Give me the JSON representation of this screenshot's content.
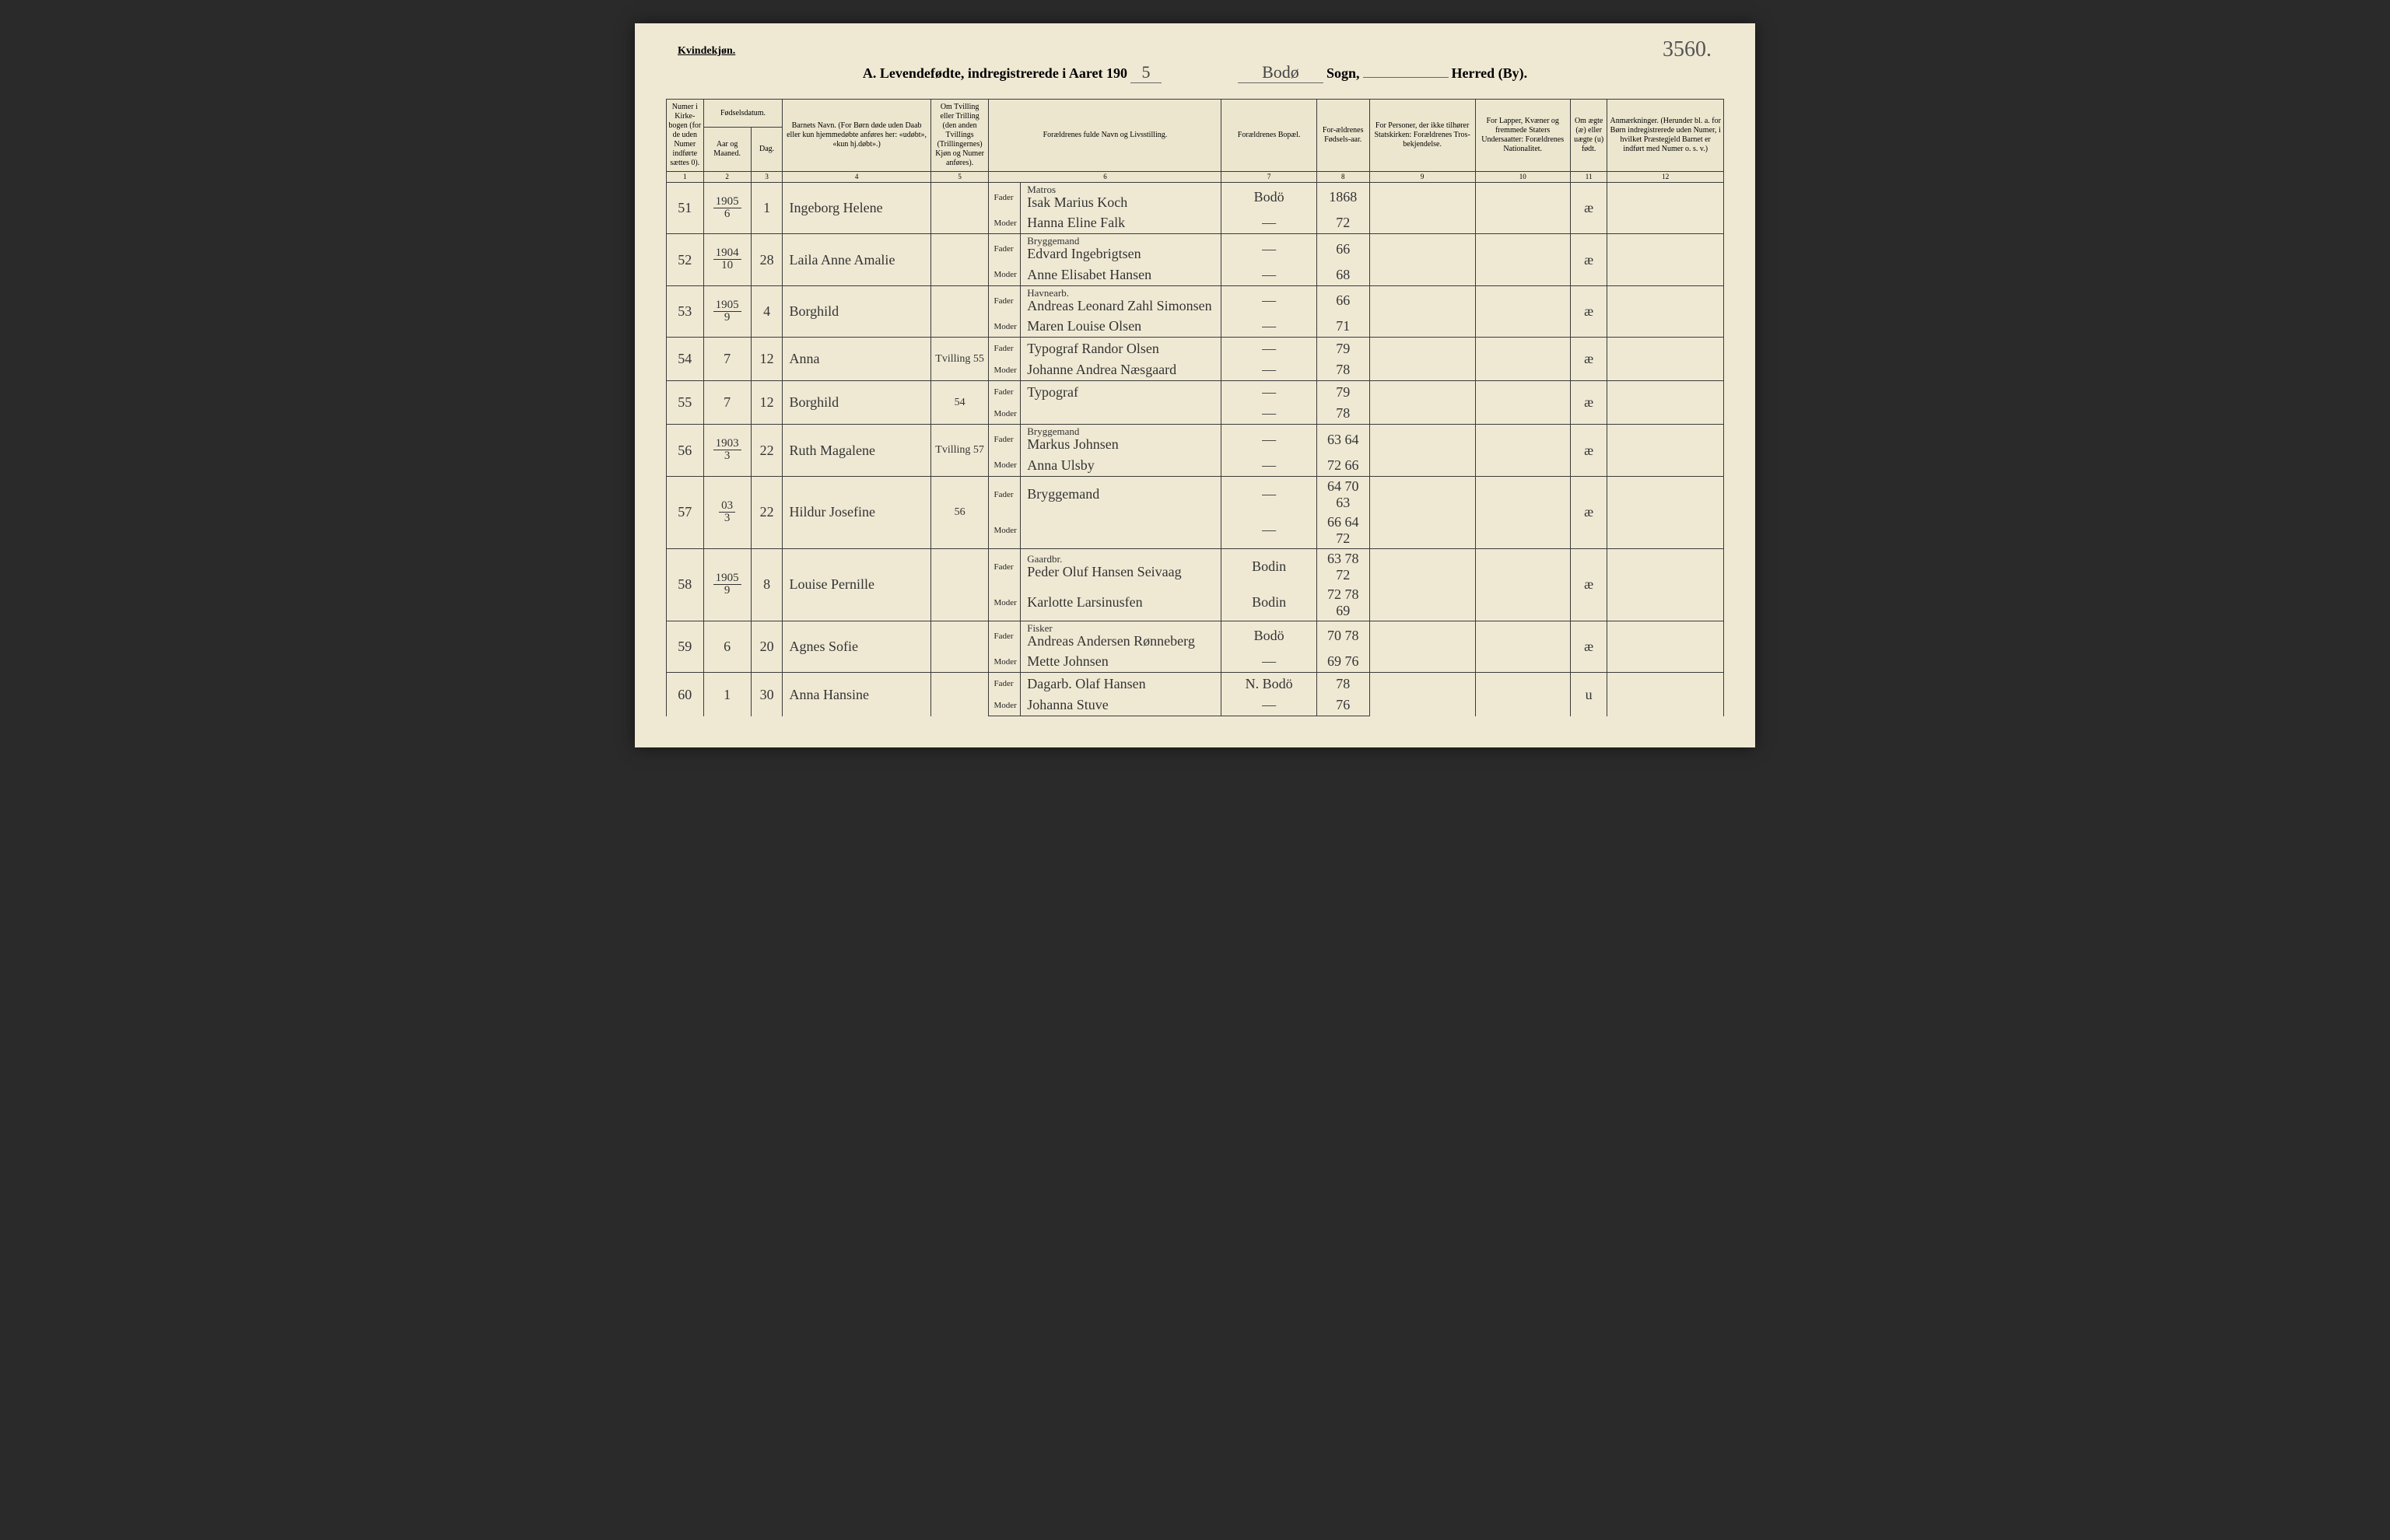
{
  "corner": "Kvindekjøn.",
  "page_no": "3560.",
  "title": {
    "a": "A.  Levendefødte, indregistrerede i Aaret 190",
    "year_suffix": "5",
    "parish_written": "Bodø",
    "sogn": "Sogn,",
    "blank2": " ",
    "herred": "Herred (By)."
  },
  "headers": {
    "c1": "Numer i Kirke-bogen (for de uden Numer indførte sættes 0).",
    "c2a": "Fødselsdatum.",
    "c2": "Aar og Maaned.",
    "c3": "Dag.",
    "c4": "Barnets Navn.\n(For Børn døde uden Daab eller kun hjemmedøbte anføres her: «udøbt», «kun hj.døbt».)",
    "c5": "Om Tvilling eller Trilling (den anden Tvillings (Trillingernes) Kjøn og Numer anføres).",
    "c6": "Forældrenes fulde Navn og Livsstilling.",
    "c7": "Forældrenes Bopæl.",
    "c8": "For-ældrenes Fødsels-aar.",
    "c9": "For Personer, der ikke tilhører Statskirken: Forældrenes Tros-bekjendelse.",
    "c10": "For Lapper, Kvæner og fremmede Staters Undersaatter: Forældrenes Nationalitet.",
    "c11": "Om ægte (æ) eller uægte (u) født.",
    "c12": "Anmærkninger.\n(Herunder bl. a. for Børn indregistrerede uden Numer, i hvilket Præstegjeld Barnet er indført med Numer o. s. v.)"
  },
  "colnums": [
    "1",
    "2",
    "3",
    "4",
    "5",
    "6",
    "7",
    "8",
    "9",
    "10",
    "11",
    "12"
  ],
  "fader": "Fader",
  "moder": "Moder",
  "rows": [
    {
      "n": "51",
      "ym_top": "1905",
      "ym_bot": "6",
      "day": "1",
      "name": "Ingeborg Helene",
      "twin": "",
      "f_occ": "Matros",
      "f": "Isak Marius Koch",
      "m": "Hanna Eline Falk",
      "bp_f": "Bodö",
      "bp_m": "—",
      "yr_f": "1868",
      "yr_m": "72",
      "leg": "æ"
    },
    {
      "n": "52",
      "ym_top": "1904",
      "ym_bot": "10",
      "day": "28",
      "name": "Laila Anne Amalie",
      "twin": "",
      "f_occ": "Bryggemand",
      "f": "Edvard Ingebrigtsen",
      "m": "Anne Elisabet Hansen",
      "bp_f": "—",
      "bp_m": "—",
      "yr_f": "66",
      "yr_m": "68",
      "leg": "æ"
    },
    {
      "n": "53",
      "ym_top": "1905",
      "ym_bot": "9",
      "day": "4",
      "name": "Borghild",
      "twin": "",
      "f_occ": "Havnearb.",
      "f": "Andreas Leonard Zahl Simonsen",
      "m": "Maren Louise Olsen",
      "bp_f": "—",
      "bp_m": "—",
      "yr_f": "66",
      "yr_m": "71",
      "leg": "æ"
    },
    {
      "n": "54",
      "ym_top": "",
      "ym_bot": "7",
      "day": "12",
      "name": "Anna",
      "twin": "Tvilling 55",
      "f_occ": "",
      "f": "Typograf Randor Olsen",
      "m": "Johanne Andrea Næsgaard",
      "bp_f": "—",
      "bp_m": "—",
      "yr_f": "79",
      "yr_m": "78",
      "leg": "æ"
    },
    {
      "n": "55",
      "ym_top": "",
      "ym_bot": "7",
      "day": "12",
      "name": "Borghild",
      "twin": "54",
      "f_occ": "",
      "f": "Typograf",
      "m": "",
      "bp_f": "—",
      "bp_m": "—",
      "yr_f": "79",
      "yr_m": "78",
      "leg": "æ"
    },
    {
      "n": "56",
      "ym_top": "1903",
      "ym_bot": "3",
      "day": "22",
      "name": "Ruth Magalene",
      "twin": "Tvilling 57",
      "f_occ": "Bryggemand",
      "f": "Markus Johnsen",
      "m": "Anna Ulsby",
      "bp_f": "—",
      "bp_m": "—",
      "yr_f": "63 64",
      "yr_m": "72 66",
      "leg": "æ"
    },
    {
      "n": "57",
      "ym_top": "03",
      "ym_bot": "3",
      "day": "22",
      "name": "Hildur Josefine",
      "twin": "56",
      "f_occ": "",
      "f": "Bryggemand",
      "m": "",
      "bp_f": "—",
      "bp_m": "—",
      "yr_f": "64 70 63",
      "yr_m": "66 64 72",
      "leg": "æ"
    },
    {
      "n": "58",
      "ym_top": "1905",
      "ym_bot": "9",
      "day": "8",
      "name": "Louise Pernille",
      "twin": "",
      "f_occ": "Gaardbr.",
      "f": "Peder Oluf Hansen   Seivaag",
      "m": "Karlotte Larsinusfen",
      "bp_f": "Bodin",
      "bp_m": "Bodin",
      "yr_f": "63 78 72",
      "yr_m": "72 78 69",
      "leg": "æ"
    },
    {
      "n": "59",
      "ym_top": "",
      "ym_bot": "6",
      "day": "20",
      "name": "Agnes Sofie",
      "twin": "",
      "f_occ": "Fisker",
      "f": "Andreas Andersen Rønneberg",
      "m": "Mette Johnsen",
      "bp_f": "Bodö",
      "bp_m": "—",
      "yr_f": "70 78",
      "yr_m": "69 76",
      "leg": "æ"
    },
    {
      "n": "60",
      "ym_top": "",
      "ym_bot": "1",
      "day": "30",
      "name": "Anna Hansine",
      "twin": "",
      "f_occ": "",
      "f": "Dagarb. Olaf Hansen",
      "m": "Johanna Stuve",
      "bp_f": "N. Bodö",
      "bp_m": "—",
      "yr_f": "78",
      "yr_m": "76",
      "leg": "u"
    }
  ]
}
